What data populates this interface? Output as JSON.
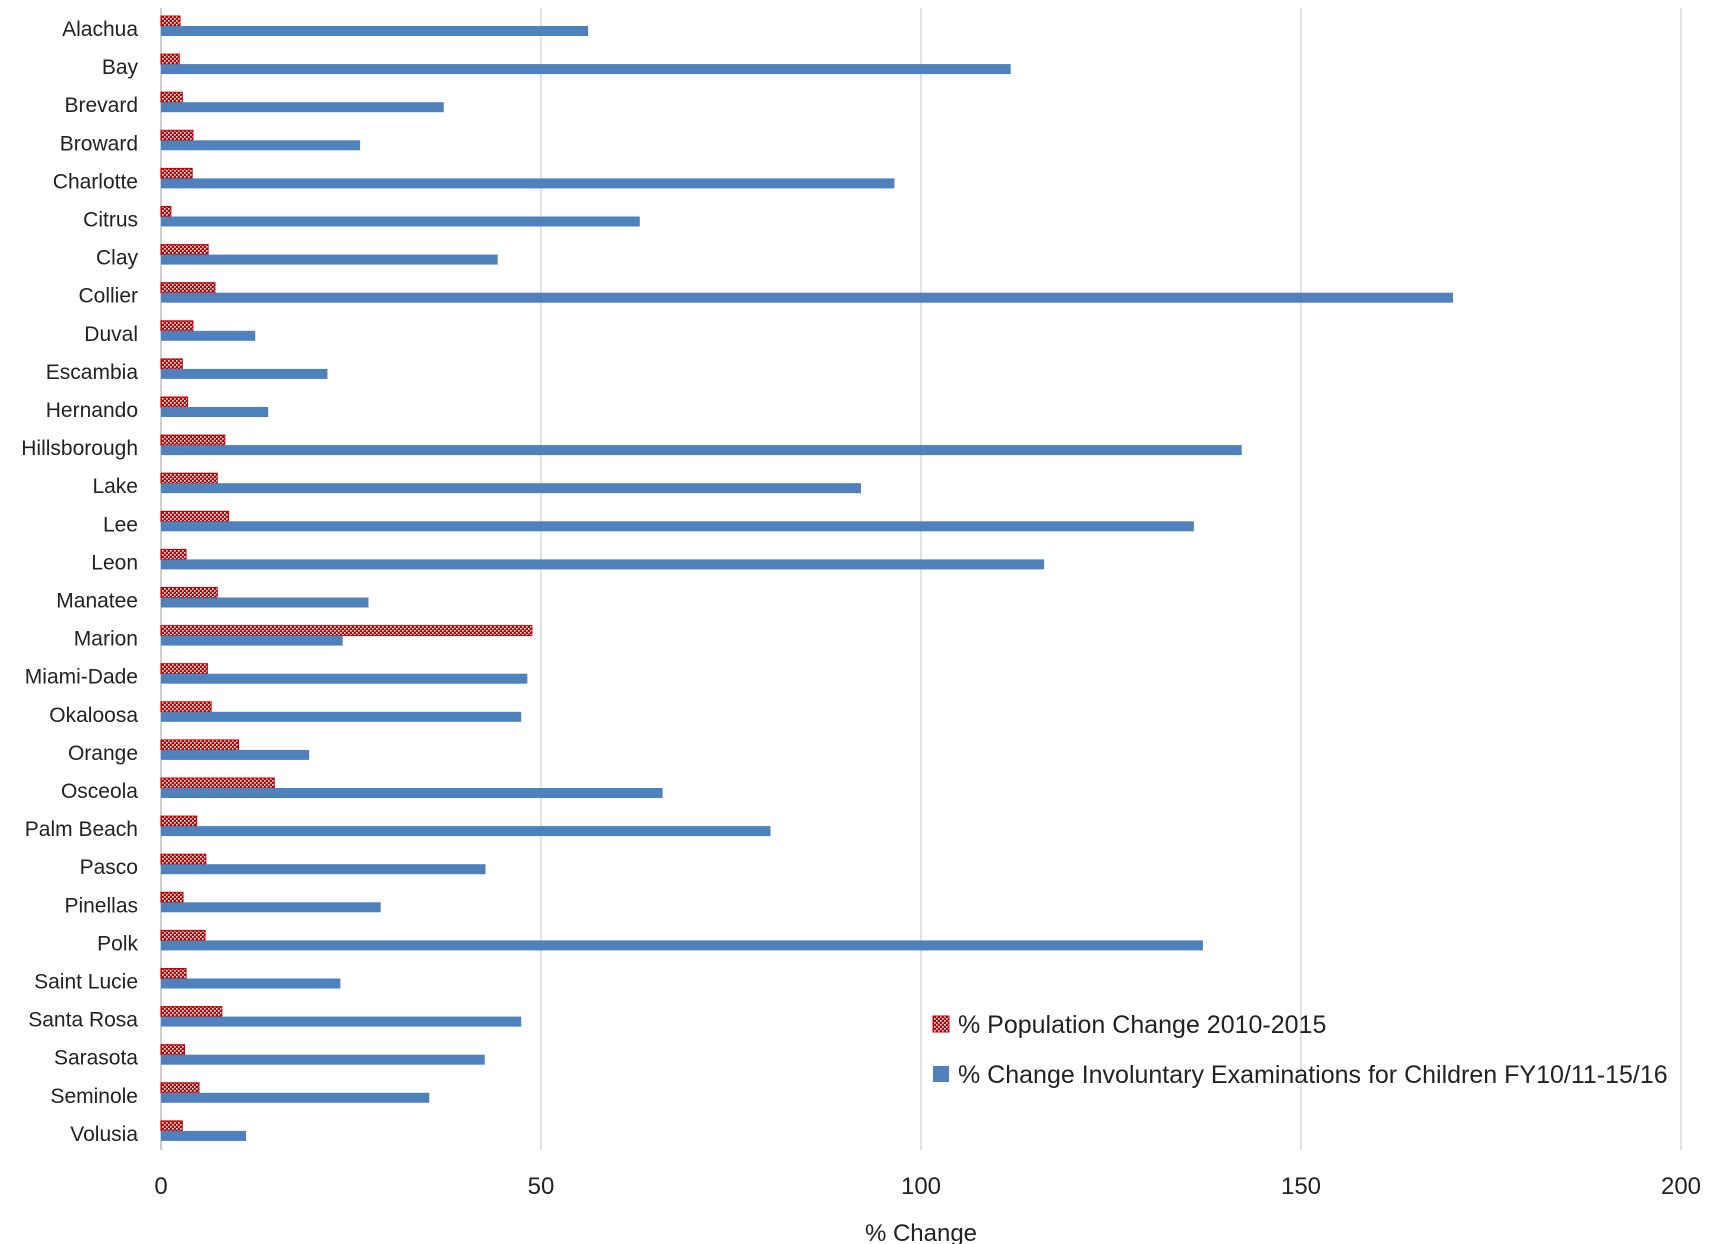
{
  "chart_data": {
    "type": "bar",
    "orientation": "horizontal",
    "xlabel": "% Change",
    "xlim": [
      0,
      200
    ],
    "xticks": [
      0,
      50,
      100,
      150,
      200
    ],
    "grid": "vertical",
    "legend_position": "bottom-right",
    "categories": [
      "Alachua",
      "Bay",
      "Brevard",
      "Broward",
      "Charlotte",
      "Citrus",
      "Clay",
      "Collier",
      "Duval",
      "Escambia",
      "Hernando",
      "Hillsborough",
      "Lake",
      "Lee",
      "Leon",
      "Manatee",
      "Marion",
      "Miami-Dade",
      "Okaloosa",
      "Orange",
      "Osceola",
      "Palm Beach",
      "Pasco",
      "Pinellas",
      "Polk",
      "Saint Lucie",
      "Santa Rosa",
      "Sarasota",
      "Seminole",
      "Volusia"
    ],
    "series": [
      {
        "name": "% Population Change 2010-2015",
        "color": "#c00000",
        "pattern": "dotted",
        "values": [
          2.5,
          2.4,
          2.8,
          4.2,
          4.1,
          1.3,
          6.2,
          7.1,
          4.2,
          2.8,
          3.5,
          8.4,
          7.4,
          8.9,
          3.3,
          7.4,
          48.8,
          6.1,
          6.6,
          10.2,
          14.9,
          4.7,
          5.9,
          2.9,
          5.8,
          3.3,
          8.0,
          3.1,
          5.0,
          2.8
        ]
      },
      {
        "name": "% Change Involuntary Examinations for Children FY10/11-15/16",
        "color": "#4f81bd",
        "pattern": "solid",
        "values": [
          56.2,
          111.8,
          37.2,
          26.2,
          96.5,
          63.0,
          44.3,
          170.0,
          12.4,
          21.9,
          14.1,
          142.2,
          92.1,
          135.9,
          116.2,
          27.3,
          23.9,
          48.2,
          47.4,
          19.5,
          66.0,
          80.2,
          42.7,
          28.9,
          137.1,
          23.6,
          47.4,
          42.6,
          35.3,
          11.2
        ]
      }
    ]
  }
}
